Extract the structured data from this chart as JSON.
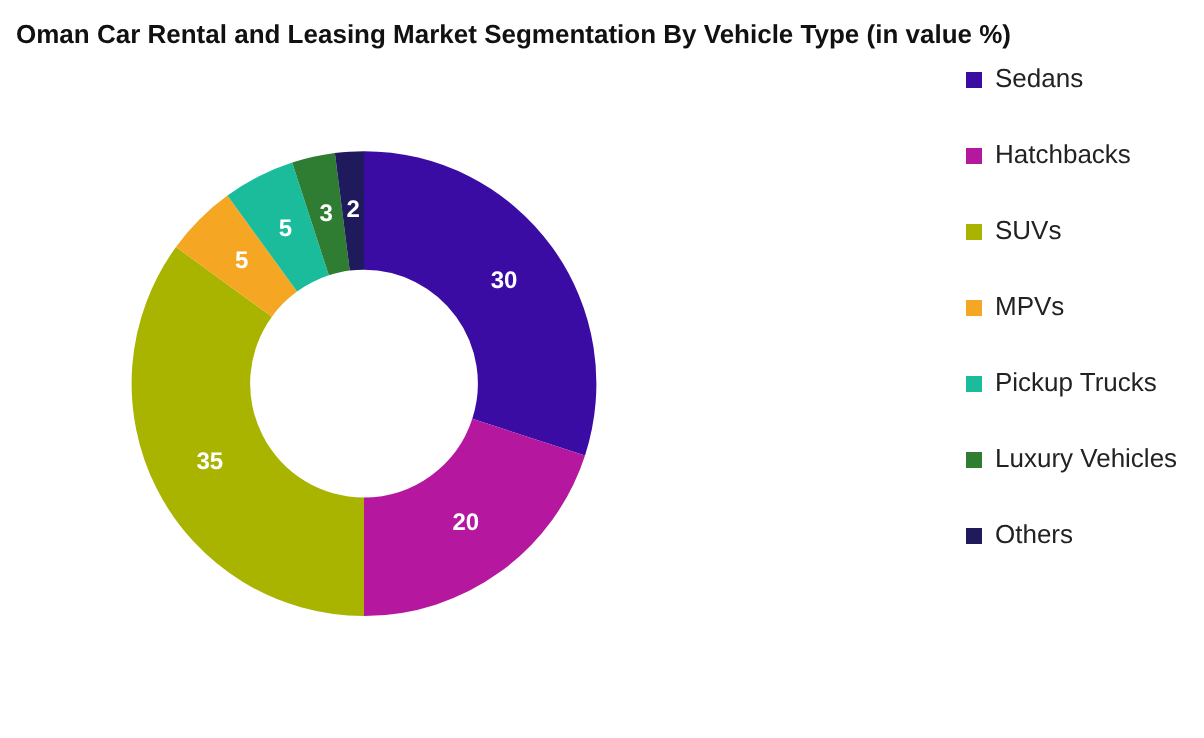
{
  "chart_data": {
    "type": "donut",
    "title": "Oman Car Rental and Leasing Market Segmentation By Vehicle Type (in value %)",
    "categories": [
      "Sedans",
      "Hatchbacks",
      "SUVs",
      "MPVs",
      "Pickup Trucks",
      "Luxury Vehicles",
      "Others"
    ],
    "values": [
      30,
      20,
      35,
      5,
      5,
      3,
      2
    ],
    "colors": [
      "#3a0ca3",
      "#b5179e",
      "#a8b400",
      "#f5a623",
      "#1abc9c",
      "#2e7d32",
      "#1f1a5c"
    ],
    "data_labels": true,
    "legend": "right"
  }
}
